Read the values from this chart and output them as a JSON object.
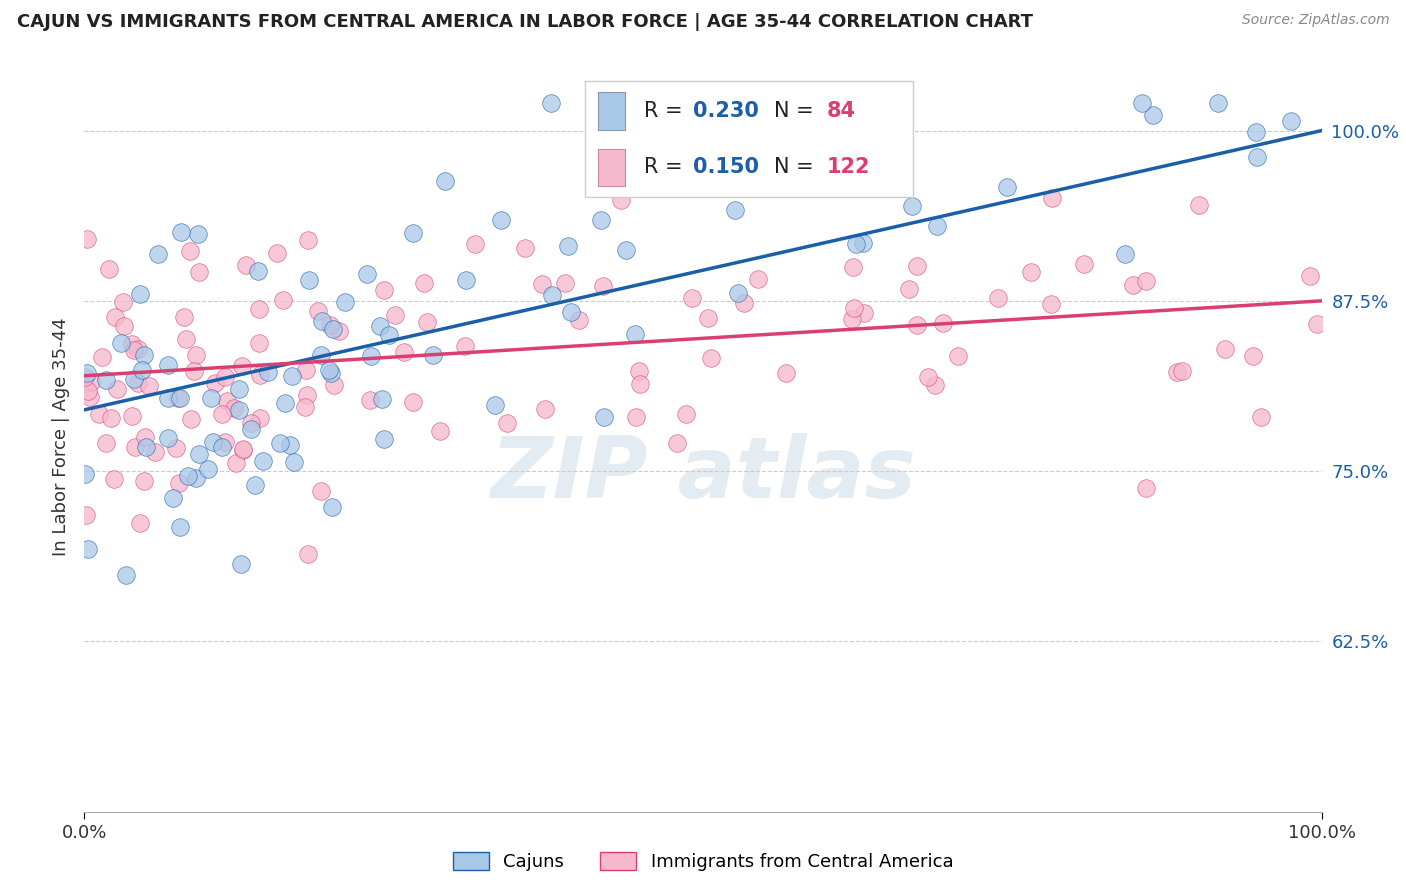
{
  "title": "CAJUN VS IMMIGRANTS FROM CENTRAL AMERICA IN LABOR FORCE | AGE 35-44 CORRELATION CHART",
  "source": "Source: ZipAtlas.com",
  "ylabel": "In Labor Force | Age 35-44",
  "xlim": [
    0.0,
    1.0
  ],
  "ylim": [
    0.5,
    1.05
  ],
  "yticks": [
    0.625,
    0.75,
    0.875,
    1.0
  ],
  "ytick_labels": [
    "62.5%",
    "75.0%",
    "87.5%",
    "100.0%"
  ],
  "xticks": [
    0.0,
    1.0
  ],
  "xtick_labels": [
    "0.0%",
    "100.0%"
  ],
  "cajun_R": 0.23,
  "cajun_N": 84,
  "immig_R": 0.15,
  "immig_N": 122,
  "cajun_color": "#a8c8e8",
  "immig_color": "#f5b8cc",
  "cajun_line_color": "#1a5fa8",
  "immig_line_color": "#d94070",
  "legend_label_cajun": "Cajuns",
  "legend_label_immig": "Immigrants from Central America",
  "background_color": "#ffffff",
  "grid_color": "#cccccc",
  "cajun_line_start": 0.795,
  "cajun_line_end": 1.0,
  "immig_line_start": 0.82,
  "immig_line_end": 0.875
}
